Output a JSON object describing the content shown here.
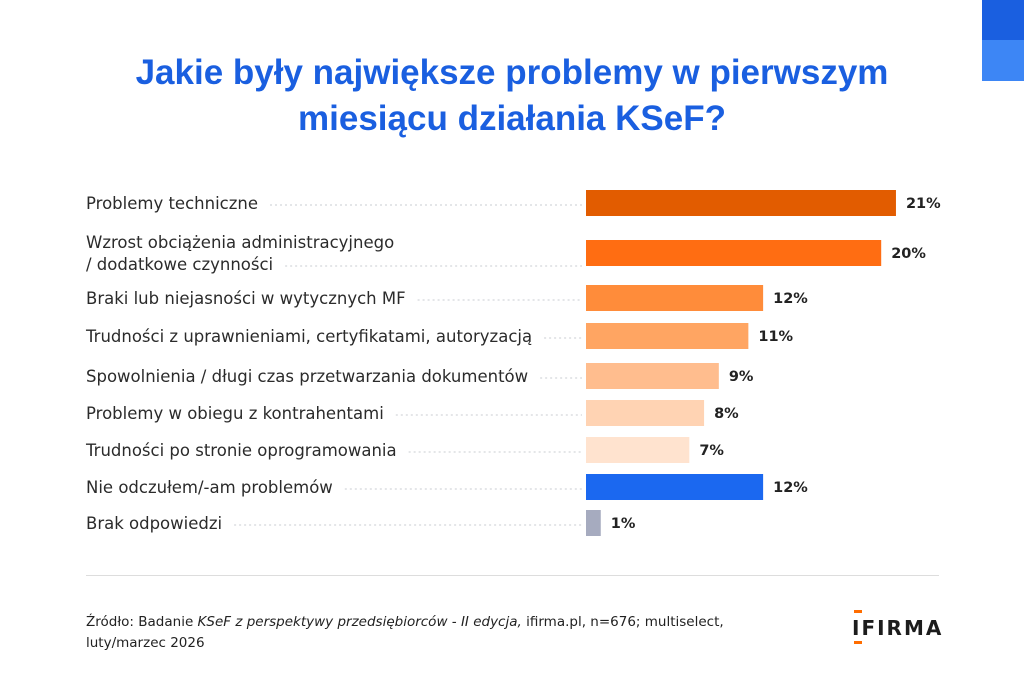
{
  "title": {
    "line1": "Jakie były największe problemy w pierwszym",
    "line2": "miesiącu działania KSeF?"
  },
  "chart_data": {
    "type": "bar",
    "orientation": "horizontal",
    "title": "Jakie były największe problemy w pierwszym miesiącu działania KSeF?",
    "xlabel": "",
    "ylabel": "",
    "xlim": [
      0,
      21
    ],
    "grid": false,
    "unit": "%",
    "categories": [
      [
        "Problemy techniczne"
      ],
      [
        "Wzrost obciążenia administracyjnego",
        "/ dodatkowe czynności"
      ],
      [
        "Braki lub niejasności w wytycznych MF"
      ],
      [
        "Trudności z uprawnieniami, certyfikatami, autoryzacją"
      ],
      [
        "Spowolnienia / długi czas przetwarzania dokumentów"
      ],
      [
        "Problemy w obiegu z kontrahentami"
      ],
      [
        "Trudności po stronie oprogramowania"
      ],
      [
        "Nie odczułem/-am problemów"
      ],
      [
        "Brak odpowiedzi"
      ]
    ],
    "values": [
      21,
      20,
      12,
      11,
      9,
      8,
      7,
      12,
      1
    ],
    "value_labels": [
      "21%",
      "20%",
      "12%",
      "11%",
      "9%",
      "8%",
      "7%",
      "12%",
      "1%"
    ],
    "colors": [
      "#e25c00",
      "#ff6d12",
      "#ff8c3a",
      "#ffa562",
      "#ffbd8e",
      "#ffd3b3",
      "#ffe3cf",
      "#1b68f0",
      "#a6abbf"
    ]
  },
  "footer": {
    "source_prefix": "Źródło: Badanie ",
    "source_title": "KSeF z perspektywy przedsiębiorców - II edycja,",
    "source_rest": " ifirma.pl, n=676; multiselect,",
    "source_line2": "luty/marzec 2026",
    "logo_text": "IFIRMA"
  },
  "colors": {
    "accent": "#1a5fe0",
    "orange": "#ff6d00"
  }
}
